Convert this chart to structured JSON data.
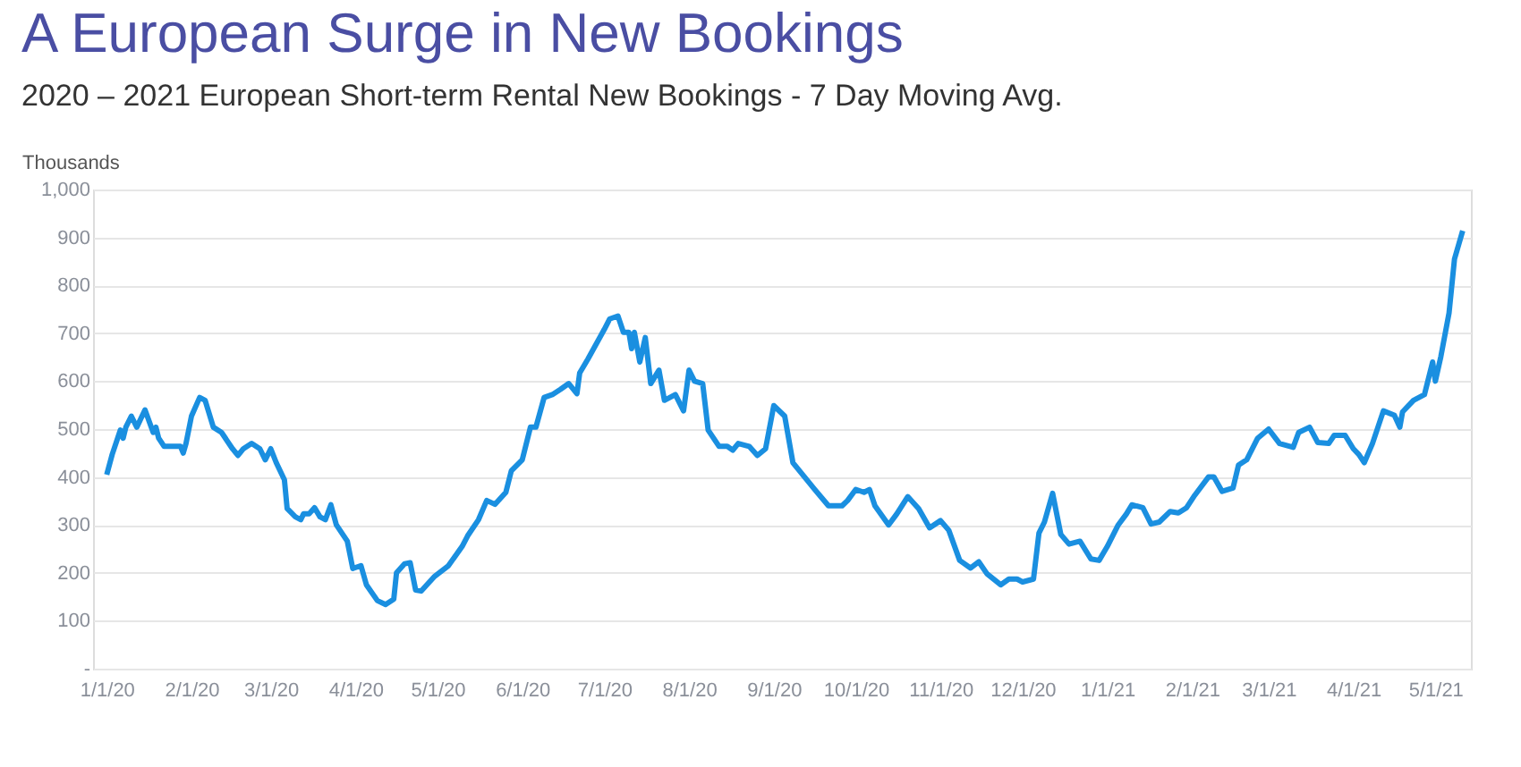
{
  "chart_data": {
    "type": "line",
    "title": "A European Surge in New Bookings",
    "subtitle": "2020 – 2021 European Short-term Rental New Bookings - 7 Day Moving Avg.",
    "ylabel": "Thousands",
    "x": [
      "2020-01-01",
      "2020-01-03",
      "2020-01-06",
      "2020-01-07",
      "2020-01-08",
      "2020-01-10",
      "2020-01-12",
      "2020-01-15",
      "2020-01-18",
      "2020-01-19",
      "2020-01-20",
      "2020-01-22",
      "2020-01-28",
      "2020-01-29",
      "2020-01-30",
      "2020-02-01",
      "2020-02-04",
      "2020-02-06",
      "2020-02-09",
      "2020-02-12",
      "2020-02-16",
      "2020-02-18",
      "2020-02-20",
      "2020-02-23",
      "2020-02-26",
      "2020-02-28",
      "2020-03-01",
      "2020-03-03",
      "2020-03-06",
      "2020-03-07",
      "2020-03-10",
      "2020-03-12",
      "2020-03-13",
      "2020-03-15",
      "2020-03-17",
      "2020-03-19",
      "2020-03-21",
      "2020-03-23",
      "2020-03-25",
      "2020-03-29",
      "2020-03-31",
      "2020-04-03",
      "2020-04-05",
      "2020-04-09",
      "2020-04-12",
      "2020-04-15",
      "2020-04-16",
      "2020-04-19",
      "2020-04-21",
      "2020-04-23",
      "2020-04-25",
      "2020-04-30",
      "2020-05-05",
      "2020-05-10",
      "2020-05-12",
      "2020-05-16",
      "2020-05-19",
      "2020-05-22",
      "2020-05-26",
      "2020-05-28",
      "2020-06-01",
      "2020-06-04",
      "2020-06-06",
      "2020-06-09",
      "2020-06-12",
      "2020-06-15",
      "2020-06-18",
      "2020-06-21",
      "2020-06-22",
      "2020-06-25",
      "2020-07-01",
      "2020-07-03",
      "2020-07-06",
      "2020-07-08",
      "2020-07-10",
      "2020-07-11",
      "2020-07-12",
      "2020-07-14",
      "2020-07-16",
      "2020-07-18",
      "2020-07-21",
      "2020-07-23",
      "2020-07-27",
      "2020-07-30",
      "2020-08-01",
      "2020-08-03",
      "2020-08-06",
      "2020-08-08",
      "2020-08-12",
      "2020-08-15",
      "2020-08-17",
      "2020-08-19",
      "2020-08-23",
      "2020-08-26",
      "2020-08-29",
      "2020-09-01",
      "2020-09-05",
      "2020-09-08",
      "2020-09-12",
      "2020-09-16",
      "2020-09-21",
      "2020-09-26",
      "2020-09-28",
      "2020-10-01",
      "2020-10-04",
      "2020-10-06",
      "2020-10-08",
      "2020-10-13",
      "2020-10-16",
      "2020-10-20",
      "2020-10-24",
      "2020-10-28",
      "2020-11-01",
      "2020-11-04",
      "2020-11-08",
      "2020-11-12",
      "2020-11-15",
      "2020-11-18",
      "2020-11-23",
      "2020-11-26",
      "2020-11-29",
      "2020-12-01",
      "2020-12-05",
      "2020-12-07",
      "2020-12-09",
      "2020-12-12",
      "2020-12-15",
      "2020-12-18",
      "2020-12-22",
      "2020-12-26",
      "2020-12-29",
      "2021-01-01",
      "2021-01-05",
      "2021-01-08",
      "2021-01-10",
      "2021-01-14",
      "2021-01-17",
      "2021-01-20",
      "2021-01-24",
      "2021-01-27",
      "2021-01-30",
      "2021-02-02",
      "2021-02-07",
      "2021-02-09",
      "2021-02-12",
      "2021-02-16",
      "2021-02-18",
      "2021-02-21",
      "2021-02-25",
      "2021-03-01",
      "2021-03-05",
      "2021-03-10",
      "2021-03-12",
      "2021-03-16",
      "2021-03-19",
      "2021-03-23",
      "2021-03-25",
      "2021-03-29",
      "2021-04-01",
      "2021-04-03",
      "2021-04-05",
      "2021-04-08",
      "2021-04-12",
      "2021-04-16",
      "2021-04-18",
      "2021-04-19",
      "2021-04-23",
      "2021-04-27",
      "2021-04-30",
      "2021-05-01",
      "2021-05-03",
      "2021-05-06",
      "2021-05-08",
      "2021-05-11"
    ],
    "series": [
      {
        "color": "#1a8fe0",
        "values": [
          405,
          447,
          498,
          481,
          504,
          527,
          504,
          540,
          493,
          504,
          481,
          464,
          464,
          450,
          470,
          527,
          566,
          560,
          504,
          493,
          459,
          445,
          459,
          470,
          459,
          436,
          459,
          430,
          394,
          334,
          317,
          311,
          323,
          323,
          336,
          317,
          311,
          342,
          300,
          266,
          209,
          215,
          175,
          142,
          134,
          145,
          200,
          219,
          221,
          164,
          162,
          193,
          215,
          255,
          277,
          311,
          351,
          343,
          368,
          413,
          436,
          504,
          504,
          566,
          572,
          583,
          595,
          574,
          617,
          646,
          708,
          730,
          736,
          702,
          702,
          668,
          702,
          640,
          691,
          595,
          623,
          560,
          572,
          538,
          623,
          600,
          595,
          498,
          464,
          464,
          456,
          470,
          464,
          445,
          459,
          549,
          527,
          430,
          402,
          374,
          340,
          340,
          351,
          374,
          368,
          374,
          340,
          300,
          323,
          359,
          334,
          294,
          309,
          289,
          226,
          210,
          223,
          198,
          175,
          187,
          187,
          181,
          187,
          283,
          306,
          366,
          280,
          260,
          266,
          229,
          226,
          255,
          300,
          323,
          342,
          336,
          302,
          306,
          328,
          325,
          336,
          362,
          400,
          400,
          370,
          377,
          425,
          436,
          481,
          500,
          470,
          462,
          493,
          504,
          472,
          470,
          487,
          487,
          459,
          447,
          430,
          470,
          538,
          529,
          504,
          536,
          560,
          572,
          640,
          600,
          651,
          742,
          855,
          914
        ]
      }
    ],
    "xlim": [
      "2019-12-27",
      "2021-05-14"
    ],
    "xticks": [
      {
        "value": "2020-01-01",
        "label": "1/1/20"
      },
      {
        "value": "2020-02-01",
        "label": "2/1/20"
      },
      {
        "value": "2020-03-01",
        "label": "3/1/20"
      },
      {
        "value": "2020-04-01",
        "label": "4/1/20"
      },
      {
        "value": "2020-05-01",
        "label": "5/1/20"
      },
      {
        "value": "2020-06-01",
        "label": "6/1/20"
      },
      {
        "value": "2020-07-01",
        "label": "7/1/20"
      },
      {
        "value": "2020-08-01",
        "label": "8/1/20"
      },
      {
        "value": "2020-09-01",
        "label": "9/1/20"
      },
      {
        "value": "2020-10-01",
        "label": "10/1/20"
      },
      {
        "value": "2020-11-01",
        "label": "11/1/20"
      },
      {
        "value": "2020-12-01",
        "label": "12/1/20"
      },
      {
        "value": "2021-01-01",
        "label": "1/1/21"
      },
      {
        "value": "2021-02-01",
        "label": "2/1/21"
      },
      {
        "value": "2021-03-01",
        "label": "3/1/21"
      },
      {
        "value": "2021-04-01",
        "label": "4/1/21"
      },
      {
        "value": "2021-05-01",
        "label": "5/1/21"
      }
    ],
    "ylim": [
      0,
      1000
    ],
    "yticks": [
      {
        "value": 0,
        "label": "-"
      },
      100,
      200,
      300,
      400,
      500,
      600,
      700,
      800,
      900,
      {
        "value": 1000,
        "label": "1,000"
      }
    ],
    "grid": "y",
    "legend": false,
    "line_style": "solid",
    "marker": "none"
  }
}
